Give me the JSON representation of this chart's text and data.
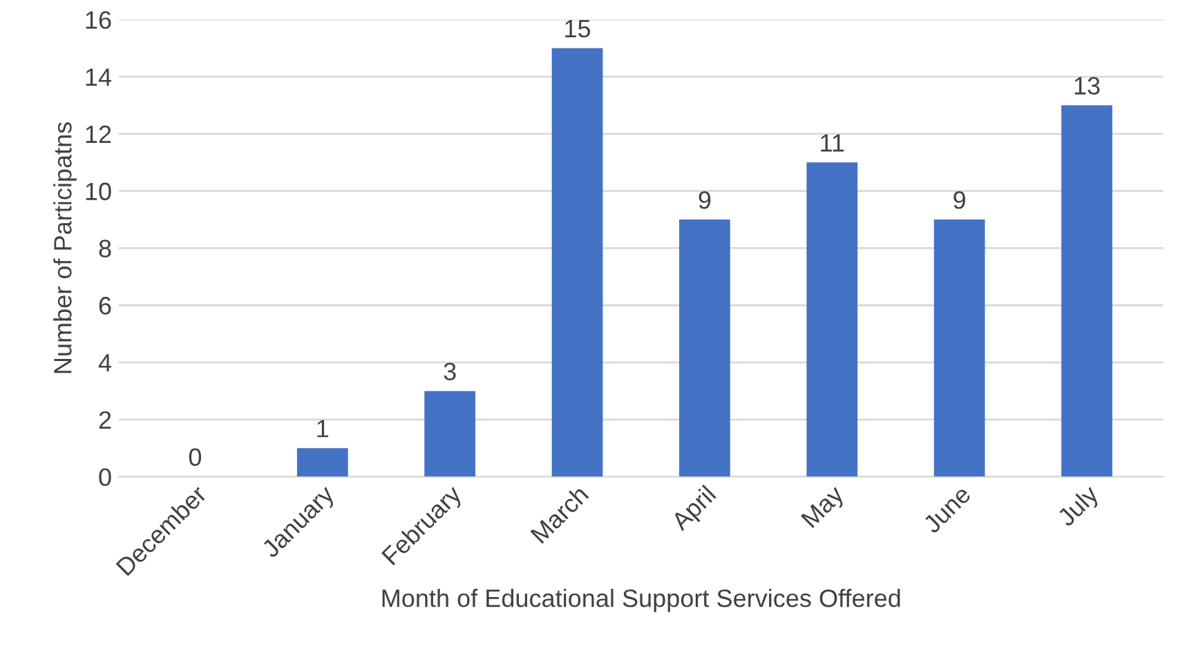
{
  "chart_data": {
    "type": "bar",
    "xlabel": "Month of Educational Support Services Offered",
    "ylabel": "Number of Participatns",
    "categories": [
      "December",
      "January",
      "February",
      "March",
      "April",
      "May",
      "June",
      "July"
    ],
    "values": [
      0,
      1,
      3,
      15,
      9,
      11,
      9,
      13
    ],
    "color": "#4472c4",
    "ylim": [
      0,
      16
    ],
    "yticks": [
      0,
      2,
      4,
      6,
      8,
      10,
      12,
      14,
      16
    ],
    "grid": "y",
    "data_labels": true
  }
}
